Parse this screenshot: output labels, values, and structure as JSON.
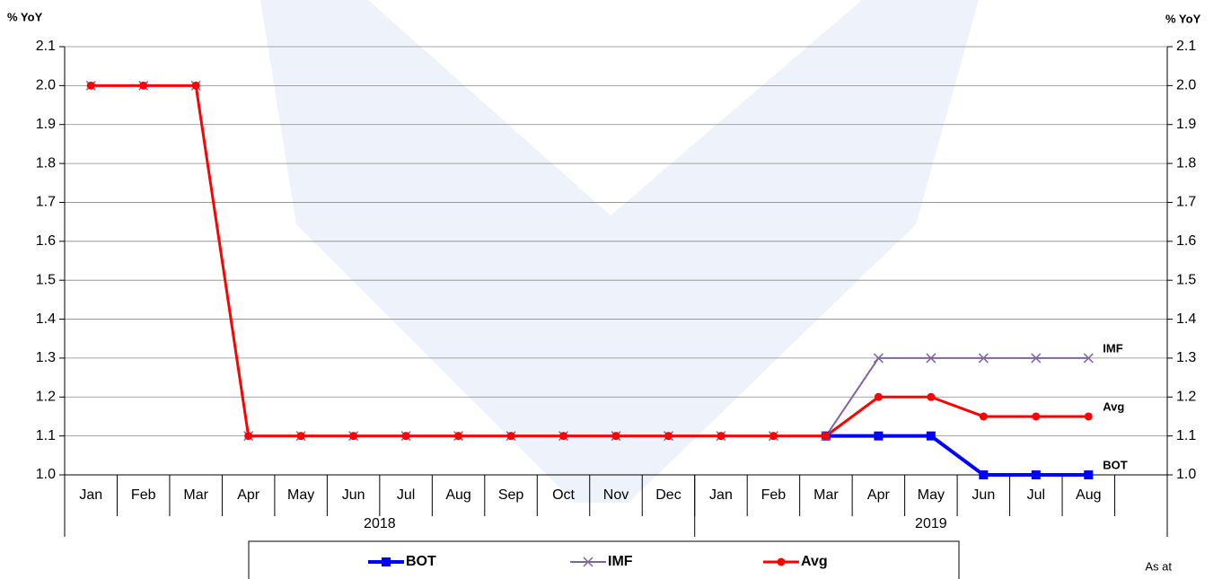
{
  "chart_data": {
    "type": "line",
    "ylabel": "% YoY",
    "y2label": "% YoY",
    "categories": [
      "Jan",
      "Feb",
      "Mar",
      "Apr",
      "May",
      "Jun",
      "Jul",
      "Aug",
      "Sep",
      "Oct",
      "Nov",
      "Dec",
      "Jan",
      "Feb",
      "Mar",
      "Apr",
      "May",
      "Jun",
      "Jul",
      "Aug",
      null
    ],
    "groups": [
      {
        "label": "2018",
        "span": 12
      },
      {
        "label": "2019",
        "span": 9
      }
    ],
    "series": [
      {
        "name": "BOT",
        "color": "#0000ff",
        "marker": "square",
        "values": [
          null,
          null,
          null,
          null,
          null,
          null,
          null,
          null,
          null,
          null,
          null,
          null,
          null,
          null,
          1.1,
          1.1,
          1.1,
          1.0,
          1.0,
          1.0,
          null
        ]
      },
      {
        "name": "IMF",
        "color": "#8064a2",
        "marker": "x",
        "values": [
          2.0,
          2.0,
          2.0,
          1.1,
          1.1,
          1.1,
          1.1,
          1.1,
          1.1,
          1.1,
          1.1,
          1.1,
          1.1,
          1.1,
          1.1,
          1.3,
          1.3,
          1.3,
          1.3,
          1.3,
          null
        ]
      },
      {
        "name": "Avg",
        "color": "#ff0000",
        "marker": "circle",
        "values": [
          2.0,
          2.0,
          2.0,
          1.1,
          1.1,
          1.1,
          1.1,
          1.1,
          1.1,
          1.1,
          1.1,
          1.1,
          1.1,
          1.1,
          1.1,
          1.2,
          1.2,
          1.15,
          1.15,
          1.15,
          null
        ]
      }
    ],
    "ylim": [
      1.0,
      2.1
    ],
    "yticks": [
      {
        "value": 1.0,
        "label": "1.0"
      },
      1.1,
      1.2,
      1.3,
      1.4,
      1.5,
      1.6,
      1.7,
      1.8,
      1.9,
      {
        "value": 2.0,
        "label": "2.0"
      },
      2.1
    ],
    "y2lim": [
      1.0,
      2.1
    ],
    "y2ticks": [
      {
        "value": 1.0,
        "label": "1.0"
      },
      1.1,
      1.2,
      1.3,
      1.4,
      1.5,
      1.6,
      1.7,
      1.8,
      1.9,
      {
        "value": 2.0,
        "label": "2.0"
      },
      2.1
    ],
    "grid": true,
    "legend": "bottom",
    "annotation": "As at"
  }
}
